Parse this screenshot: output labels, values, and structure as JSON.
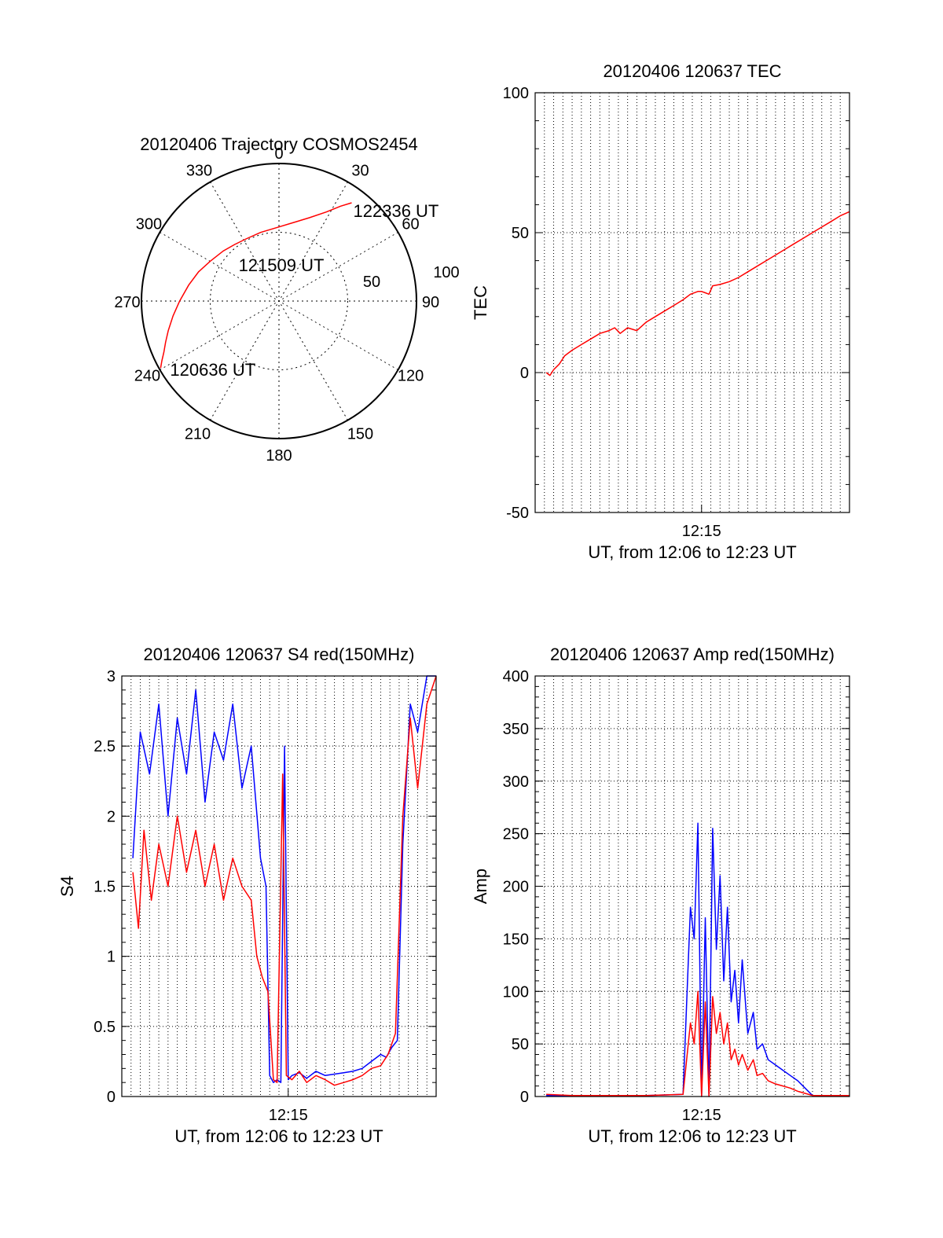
{
  "figure": {
    "background": "#ffffff"
  },
  "colors": {
    "red": "#ff0000",
    "blue": "#0000ff",
    "axis": "#000000",
    "grid": "#000000"
  },
  "chart_data": [
    {
      "id": "polar",
      "type": "scatter",
      "title": "20120406 Trajectory COSMOS2454",
      "coordinate_system": "polar (azimuth clockwise from north, radius = zenith angle)",
      "azimuth_labels": [
        "0",
        "30",
        "60",
        "90",
        "120",
        "150",
        "180",
        "210",
        "240",
        "270",
        "300",
        "330"
      ],
      "ring_labels": [
        "50",
        "100"
      ],
      "grid": true,
      "series": [
        {
          "color": "#ff0000",
          "azimuth_deg": [
            240.5,
            243,
            246,
            250,
            255,
            262,
            270,
            280,
            290,
            300,
            312,
            322,
            332,
            345,
            358,
            10,
            20,
            28,
            33,
            36.5
          ],
          "zenith_deg": [
            89,
            86,
            82.5,
            79,
            75,
            70,
            65,
            60,
            56,
            52,
            49,
            47,
            46,
            46.5,
            48,
            52,
            58,
            66,
            74,
            80
          ]
        }
      ],
      "annotations": [
        {
          "text": "122336 UT",
          "at_azimuth": 36.5
        },
        {
          "text": "121509 UT",
          "at_azimuth": 0
        },
        {
          "text": "120636 UT",
          "at_azimuth": 240
        }
      ]
    },
    {
      "id": "tec",
      "type": "line",
      "title": "20120406 120637 TEC",
      "xlabel": "UT, from 12:06 to 12:23 UT",
      "ylabel": "TEC",
      "x_unit": "minutes of UT hour 12",
      "xlim": [
        6,
        23
      ],
      "ylim": [
        -50,
        100
      ],
      "yticks": [
        "-50",
        "0",
        "50",
        "100"
      ],
      "xticks": [
        {
          "value": 15,
          "label": "12:15"
        }
      ],
      "grid": true,
      "series": [
        {
          "color": "#ff0000",
          "x": [
            6.6,
            6.8,
            7.0,
            7.3,
            7.6,
            8.0,
            8.5,
            9.0,
            9.5,
            10.0,
            10.3,
            10.6,
            11.0,
            11.5,
            12.0,
            12.5,
            13.0,
            13.5,
            14.0,
            14.4,
            14.8,
            15.0,
            15.2,
            15.4,
            15.6,
            16.0,
            16.5,
            17.0,
            17.5,
            18.0,
            18.5,
            19.0,
            19.5,
            20.0,
            20.5,
            21.0,
            21.5,
            22.0,
            22.5,
            23.0
          ],
          "y": [
            0,
            -1,
            1,
            3,
            6,
            8,
            10,
            12,
            14,
            15,
            16,
            14,
            16,
            15,
            18,
            20,
            22,
            24,
            26,
            28,
            29,
            29,
            28.5,
            28,
            31,
            31.5,
            32.5,
            34,
            36,
            38,
            40,
            42,
            44,
            46,
            48,
            50,
            52,
            54,
            56,
            57.5
          ]
        }
      ]
    },
    {
      "id": "s4",
      "type": "line",
      "title": "20120406 120637 S4 red(150MHz)",
      "xlabel": "UT, from 12:06 to 12:23 UT",
      "ylabel": "S4",
      "x_unit": "minutes of UT hour 12",
      "xlim": [
        6,
        23
      ],
      "ylim": [
        0,
        3
      ],
      "yticks": [
        "0",
        "0.5",
        "1",
        "1.5",
        "2",
        "2.5",
        "3"
      ],
      "xticks": [
        {
          "value": 15,
          "label": "12:15"
        }
      ],
      "grid": true,
      "series": [
        {
          "color": "#0000ff",
          "x": [
            6.6,
            7.0,
            7.5,
            8.0,
            8.5,
            9.0,
            9.5,
            10.0,
            10.5,
            11.0,
            11.5,
            12.0,
            12.5,
            13.0,
            13.5,
            13.8,
            14.0,
            14.2,
            14.4,
            14.6,
            14.8,
            15.0,
            15.2,
            15.6,
            16.0,
            16.5,
            17.0,
            17.5,
            18.0,
            18.5,
            19.0,
            19.5,
            20.0,
            20.3,
            20.6,
            20.9,
            21.2,
            21.6,
            22.0,
            22.5,
            23.0
          ],
          "y": [
            1.7,
            2.6,
            2.3,
            2.8,
            2.0,
            2.7,
            2.3,
            2.9,
            2.1,
            2.6,
            2.4,
            2.8,
            2.2,
            2.5,
            1.7,
            1.5,
            0.15,
            0.1,
            0.12,
            0.1,
            2.5,
            0.12,
            0.15,
            0.17,
            0.13,
            0.18,
            0.15,
            0.16,
            0.17,
            0.18,
            0.2,
            0.25,
            0.3,
            0.28,
            0.35,
            0.4,
            1.8,
            2.8,
            2.6,
            3.0,
            3.0
          ]
        },
        {
          "color": "#ff0000",
          "x": [
            6.6,
            6.9,
            7.2,
            7.6,
            8.0,
            8.5,
            9.0,
            9.5,
            10.0,
            10.5,
            11.0,
            11.5,
            12.0,
            12.5,
            13.0,
            13.3,
            13.6,
            13.9,
            14.2,
            14.4,
            14.7,
            14.9,
            15.2,
            15.6,
            16.0,
            16.5,
            17.0,
            17.5,
            18.0,
            18.5,
            19.0,
            19.5,
            20.0,
            20.4,
            20.8,
            21.2,
            21.6,
            22.0,
            22.5,
            23.0
          ],
          "y": [
            1.6,
            1.2,
            1.9,
            1.4,
            1.8,
            1.5,
            2.0,
            1.6,
            1.9,
            1.5,
            1.8,
            1.4,
            1.7,
            1.5,
            1.4,
            1.0,
            0.85,
            0.75,
            0.12,
            0.1,
            2.3,
            0.15,
            0.12,
            0.18,
            0.1,
            0.15,
            0.12,
            0.08,
            0.1,
            0.12,
            0.15,
            0.2,
            0.22,
            0.3,
            0.45,
            2.0,
            2.7,
            2.2,
            2.8,
            3.0
          ]
        }
      ]
    },
    {
      "id": "amp",
      "type": "line",
      "title": "20120406 120637 Amp red(150MHz)",
      "xlabel": "UT, from 12:06 to 12:23 UT",
      "ylabel": "Amp",
      "x_unit": "minutes of UT hour 12",
      "xlim": [
        6,
        23
      ],
      "ylim": [
        0,
        400
      ],
      "yticks": [
        "0",
        "50",
        "100",
        "150",
        "200",
        "250",
        "300",
        "350",
        "400"
      ],
      "xticks": [
        {
          "value": 15,
          "label": "12:15"
        }
      ],
      "grid": true,
      "series": [
        {
          "color": "#0000ff",
          "x": [
            6.6,
            8.0,
            10.0,
            12.0,
            14.0,
            14.4,
            14.6,
            14.8,
            15.0,
            15.2,
            15.4,
            15.6,
            15.8,
            16.0,
            16.2,
            16.4,
            16.6,
            16.8,
            17.0,
            17.2,
            17.5,
            17.8,
            18.0,
            18.3,
            18.6,
            19.0,
            19.4,
            19.8,
            20.2,
            20.6,
            21.0,
            21.5,
            22.0,
            23.0
          ],
          "y": [
            1,
            1,
            1,
            1,
            2,
            180,
            150,
            260,
            0,
            170,
            0,
            255,
            140,
            210,
            110,
            180,
            90,
            120,
            70,
            130,
            60,
            80,
            45,
            50,
            35,
            30,
            25,
            20,
            15,
            8,
            1,
            1,
            1,
            1
          ]
        },
        {
          "color": "#ff0000",
          "x": [
            6.6,
            8.0,
            10.0,
            12.0,
            14.0,
            14.4,
            14.6,
            14.8,
            15.0,
            15.2,
            15.4,
            15.6,
            15.8,
            16.0,
            16.2,
            16.4,
            16.6,
            16.8,
            17.0,
            17.2,
            17.5,
            17.8,
            18.0,
            18.3,
            18.6,
            19.0,
            19.4,
            19.8,
            20.2,
            20.6,
            21.0,
            22.0,
            23.0
          ],
          "y": [
            2,
            1,
            1,
            1,
            2,
            70,
            50,
            100,
            0,
            90,
            0,
            95,
            60,
            80,
            50,
            70,
            35,
            45,
            30,
            40,
            25,
            35,
            20,
            22,
            15,
            12,
            10,
            8,
            5,
            3,
            1,
            1,
            1
          ]
        }
      ]
    }
  ]
}
